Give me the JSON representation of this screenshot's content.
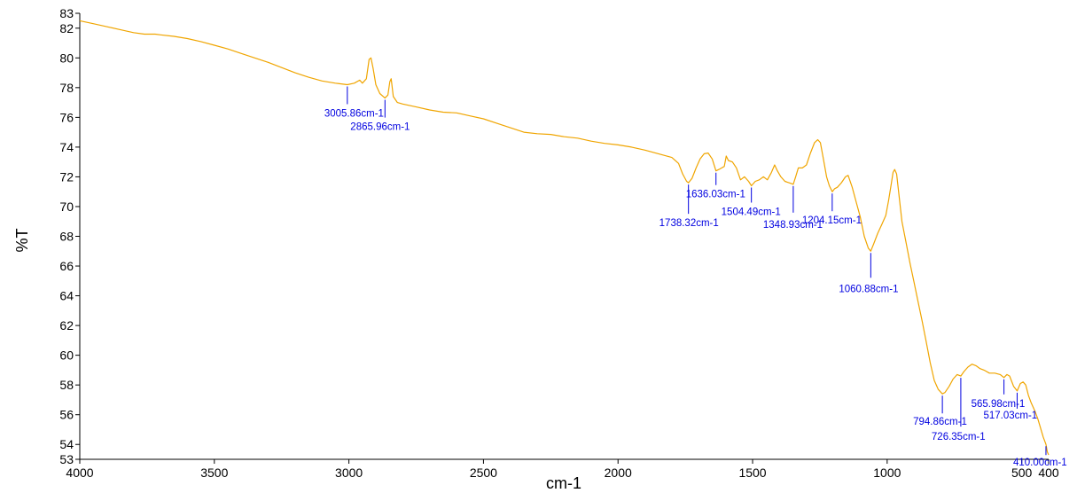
{
  "chart_data": {
    "type": "line",
    "xlabel": "cm-1",
    "ylabel": "%T",
    "xlim": [
      4000,
      400
    ],
    "x_reversed": true,
    "ylim": [
      53,
      83
    ],
    "x_ticks": [
      4000,
      3500,
      3000,
      2500,
      2000,
      1500,
      1000,
      500,
      400
    ],
    "x_tick_labels": [
      "4000",
      "3500",
      "3000",
      "2500",
      "2000",
      "1500",
      "1000",
      "500",
      "400"
    ],
    "y_ticks": [
      53,
      54,
      56,
      58,
      60,
      62,
      64,
      66,
      68,
      70,
      72,
      74,
      76,
      78,
      80,
      82,
      83
    ],
    "y_tick_labels": [
      "53",
      "54",
      "56",
      "58",
      "60",
      "62",
      "64",
      "66",
      "68",
      "70",
      "72",
      "74",
      "76",
      "78",
      "80",
      "82",
      "83"
    ],
    "grid": false,
    "line_color": "#F0A500",
    "annotation_color": "#0000E0",
    "series": [
      {
        "points": [
          [
            4000,
            82.5
          ],
          [
            3950,
            82.3
          ],
          [
            3900,
            82.1
          ],
          [
            3850,
            81.9
          ],
          [
            3800,
            81.7
          ],
          [
            3760,
            81.6
          ],
          [
            3720,
            81.6
          ],
          [
            3700,
            81.55
          ],
          [
            3650,
            81.45
          ],
          [
            3600,
            81.3
          ],
          [
            3550,
            81.1
          ],
          [
            3500,
            80.85
          ],
          [
            3450,
            80.6
          ],
          [
            3400,
            80.3
          ],
          [
            3350,
            80.0
          ],
          [
            3300,
            79.7
          ],
          [
            3250,
            79.35
          ],
          [
            3200,
            79.0
          ],
          [
            3150,
            78.7
          ],
          [
            3100,
            78.45
          ],
          [
            3050,
            78.3
          ],
          [
            3005.86,
            78.2
          ],
          [
            2980,
            78.3
          ],
          [
            2960,
            78.5
          ],
          [
            2950,
            78.3
          ],
          [
            2935,
            78.6
          ],
          [
            2925,
            79.9
          ],
          [
            2918,
            80.0
          ],
          [
            2910,
            79.3
          ],
          [
            2900,
            78.2
          ],
          [
            2885,
            77.6
          ],
          [
            2865.96,
            77.3
          ],
          [
            2855,
            77.5
          ],
          [
            2848,
            78.4
          ],
          [
            2843,
            78.6
          ],
          [
            2835,
            77.4
          ],
          [
            2820,
            77.0
          ],
          [
            2800,
            76.9
          ],
          [
            2750,
            76.7
          ],
          [
            2700,
            76.5
          ],
          [
            2650,
            76.35
          ],
          [
            2600,
            76.3
          ],
          [
            2550,
            76.1
          ],
          [
            2500,
            75.9
          ],
          [
            2450,
            75.6
          ],
          [
            2400,
            75.3
          ],
          [
            2350,
            75.0
          ],
          [
            2300,
            74.9
          ],
          [
            2250,
            74.85
          ],
          [
            2200,
            74.7
          ],
          [
            2150,
            74.6
          ],
          [
            2100,
            74.4
          ],
          [
            2050,
            74.25
          ],
          [
            2000,
            74.15
          ],
          [
            1950,
            74.0
          ],
          [
            1900,
            73.8
          ],
          [
            1850,
            73.55
          ],
          [
            1800,
            73.3
          ],
          [
            1775,
            72.9
          ],
          [
            1760,
            72.2
          ],
          [
            1745,
            71.7
          ],
          [
            1738.32,
            71.6
          ],
          [
            1725,
            71.9
          ],
          [
            1710,
            72.6
          ],
          [
            1695,
            73.2
          ],
          [
            1680,
            73.55
          ],
          [
            1665,
            73.6
          ],
          [
            1650,
            73.2
          ],
          [
            1636.03,
            72.4
          ],
          [
            1625,
            72.5
          ],
          [
            1615,
            72.6
          ],
          [
            1605,
            72.7
          ],
          [
            1598,
            73.4
          ],
          [
            1590,
            73.1
          ],
          [
            1575,
            73.0
          ],
          [
            1560,
            72.6
          ],
          [
            1545,
            71.8
          ],
          [
            1530,
            72.0
          ],
          [
            1515,
            71.7
          ],
          [
            1504.49,
            71.4
          ],
          [
            1490,
            71.7
          ],
          [
            1475,
            71.8
          ],
          [
            1460,
            72.0
          ],
          [
            1445,
            71.8
          ],
          [
            1430,
            72.3
          ],
          [
            1418,
            72.8
          ],
          [
            1408,
            72.4
          ],
          [
            1395,
            72.0
          ],
          [
            1380,
            71.7
          ],
          [
            1365,
            71.6
          ],
          [
            1348.93,
            71.5
          ],
          [
            1340,
            72.0
          ],
          [
            1330,
            72.6
          ],
          [
            1315,
            72.6
          ],
          [
            1300,
            72.8
          ],
          [
            1285,
            73.6
          ],
          [
            1270,
            74.3
          ],
          [
            1258,
            74.5
          ],
          [
            1248,
            74.3
          ],
          [
            1238,
            73.3
          ],
          [
            1225,
            72.0
          ],
          [
            1215,
            71.4
          ],
          [
            1204.15,
            71.0
          ],
          [
            1195,
            71.2
          ],
          [
            1185,
            71.3
          ],
          [
            1170,
            71.6
          ],
          [
            1155,
            72.0
          ],
          [
            1145,
            72.1
          ],
          [
            1130,
            71.3
          ],
          [
            1115,
            70.3
          ],
          [
            1100,
            69.3
          ],
          [
            1085,
            68.0
          ],
          [
            1070,
            67.2
          ],
          [
            1060.88,
            67.0
          ],
          [
            1050,
            67.5
          ],
          [
            1035,
            68.2
          ],
          [
            1020,
            68.8
          ],
          [
            1005,
            69.4
          ],
          [
            995,
            70.4
          ],
          [
            985,
            71.5
          ],
          [
            978,
            72.3
          ],
          [
            972,
            72.5
          ],
          [
            965,
            72.2
          ],
          [
            955,
            70.6
          ],
          [
            945,
            69.0
          ],
          [
            930,
            67.6
          ],
          [
            915,
            66.2
          ],
          [
            900,
            64.9
          ],
          [
            885,
            63.6
          ],
          [
            870,
            62.3
          ],
          [
            855,
            60.9
          ],
          [
            840,
            59.5
          ],
          [
            825,
            58.3
          ],
          [
            810,
            57.7
          ],
          [
            794.86,
            57.4
          ],
          [
            785,
            57.5
          ],
          [
            770,
            57.9
          ],
          [
            755,
            58.4
          ],
          [
            740,
            58.7
          ],
          [
            726.35,
            58.6
          ],
          [
            715,
            58.9
          ],
          [
            700,
            59.2
          ],
          [
            685,
            59.4
          ],
          [
            670,
            59.3
          ],
          [
            655,
            59.1
          ],
          [
            640,
            59.0
          ],
          [
            620,
            58.8
          ],
          [
            600,
            58.8
          ],
          [
            580,
            58.7
          ],
          [
            565.98,
            58.5
          ],
          [
            555,
            58.7
          ],
          [
            545,
            58.6
          ],
          [
            530,
            57.9
          ],
          [
            517.03,
            57.6
          ],
          [
            505,
            58.1
          ],
          [
            495,
            58.2
          ],
          [
            485,
            58.0
          ],
          [
            475,
            57.3
          ],
          [
            465,
            56.8
          ],
          [
            450,
            56.2
          ],
          [
            440,
            55.7
          ],
          [
            430,
            55.1
          ],
          [
            420,
            54.5
          ],
          [
            410,
            54.0
          ],
          [
            405,
            53.5
          ],
          [
            400,
            53.3
          ]
        ]
      }
    ],
    "annotations": [
      {
        "x": 3005.86,
        "label": "3005.86cm-1"
      },
      {
        "x": 2865.96,
        "label": "2865.96cm-1"
      },
      {
        "x": 1738.32,
        "label": "1738.32cm-1"
      },
      {
        "x": 1636.03,
        "label": "1636.03cm-1"
      },
      {
        "x": 1504.49,
        "label": "1504.49cm-1"
      },
      {
        "x": 1348.93,
        "label": "1348.93cm-1"
      },
      {
        "x": 1204.15,
        "label": "1204.15cm-1"
      },
      {
        "x": 1060.88,
        "label": "1060.88cm-1"
      },
      {
        "x": 794.86,
        "label": "794.86cm-1"
      },
      {
        "x": 726.35,
        "label": "726.35cm-1"
      },
      {
        "x": 565.98,
        "label": "565.98cm-1"
      },
      {
        "x": 517.03,
        "label": "517.03cm-1"
      },
      {
        "x": 410.0,
        "label": "410.00cm-1"
      }
    ]
  }
}
